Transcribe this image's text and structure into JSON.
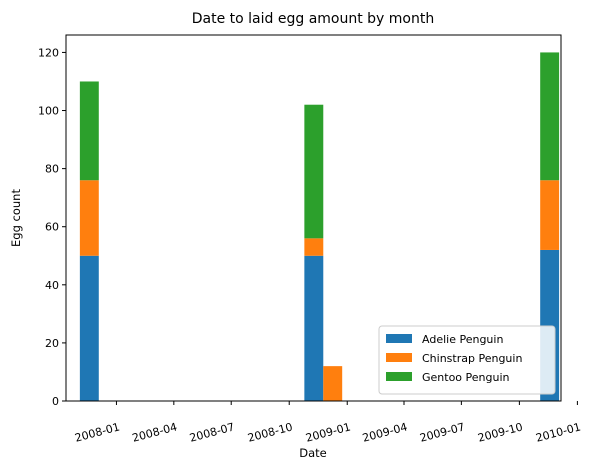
{
  "colors": {
    "adelie": "#1f77b4",
    "chinstrap": "#ff7f0e",
    "gentoo": "#2ca02c"
  },
  "chart_data": {
    "type": "bar",
    "stacked": true,
    "title": "Date to laid egg amount by month",
    "xlabel": "Date",
    "ylabel": "Egg count",
    "x_axis": "date",
    "xlim": [
      "2007-10-13",
      "2009-12-06"
    ],
    "ylim": [
      0,
      126
    ],
    "grid": false,
    "legend_position": "lower-right",
    "x_ticks": [
      "2008-01",
      "2008-04",
      "2008-07",
      "2008-10",
      "2009-01",
      "2009-04",
      "2009-07",
      "2009-10",
      "2010-01"
    ],
    "x_tick_dates": [
      "2008-01-01",
      "2008-04-01",
      "2008-07-01",
      "2008-10-01",
      "2009-01-01",
      "2009-04-01",
      "2009-07-01",
      "2009-10-01",
      "2010-01-01"
    ],
    "y_ticks": [
      0,
      20,
      40,
      60,
      80,
      100,
      120
    ],
    "bar_width_days": 30,
    "series": [
      {
        "name": "Adelie Penguin",
        "color": "#1f77b4",
        "points": [
          {
            "date": "2007-11-19",
            "value": 50
          },
          {
            "date": "2008-11-09",
            "value": 50
          },
          {
            "date": "2008-12-09",
            "value": 0
          },
          {
            "date": "2009-11-18",
            "value": 52
          }
        ]
      },
      {
        "name": "Chinstrap Penguin",
        "color": "#ff7f0e",
        "points": [
          {
            "date": "2007-11-19",
            "value": 26
          },
          {
            "date": "2008-11-09",
            "value": 6
          },
          {
            "date": "2008-12-09",
            "value": 12
          },
          {
            "date": "2009-11-18",
            "value": 24
          }
        ]
      },
      {
        "name": "Gentoo Penguin",
        "color": "#2ca02c",
        "points": [
          {
            "date": "2007-11-19",
            "value": 34
          },
          {
            "date": "2008-11-09",
            "value": 46
          },
          {
            "date": "2008-12-09",
            "value": 0
          },
          {
            "date": "2009-11-18",
            "value": 44
          }
        ]
      }
    ]
  }
}
